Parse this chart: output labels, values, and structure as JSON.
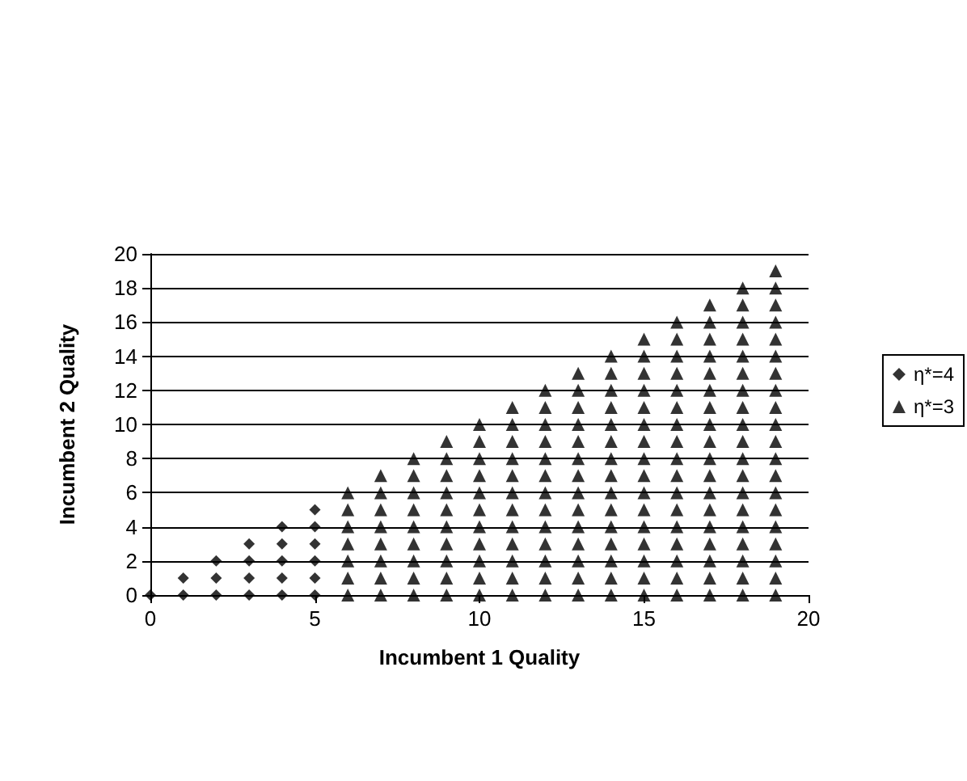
{
  "chart_data": {
    "type": "scatter",
    "xlabel": "Incumbent 1 Quality",
    "ylabel": "Incumbent 2 Quality",
    "xlim": [
      0,
      20
    ],
    "xticks": [
      0,
      5,
      10,
      15,
      20
    ],
    "ylim": [
      0,
      20
    ],
    "yticks": [
      0,
      2,
      4,
      6,
      8,
      10,
      12,
      14,
      16,
      18,
      20
    ],
    "grid": "y",
    "legend": "right",
    "series": [
      {
        "name": "η*=4",
        "color": "#000000",
        "marker": "diamond",
        "x": [
          0,
          1,
          1,
          2,
          2,
          2,
          3,
          3,
          3,
          3,
          4,
          4,
          4,
          4,
          4,
          5,
          5,
          5,
          5,
          5,
          5
        ],
        "values": [
          0,
          0,
          1,
          0,
          1,
          2,
          0,
          1,
          2,
          3,
          0,
          1,
          2,
          3,
          4,
          0,
          1,
          2,
          3,
          4,
          5
        ]
      },
      {
        "name": "η*=3",
        "color": "#000000",
        "marker": "triangle",
        "x": [
          6,
          6,
          6,
          6,
          6,
          6,
          6,
          7,
          7,
          7,
          7,
          7,
          7,
          7,
          7,
          8,
          8,
          8,
          8,
          8,
          8,
          8,
          8,
          8,
          9,
          9,
          9,
          9,
          9,
          9,
          9,
          9,
          9,
          9,
          10,
          10,
          10,
          10,
          10,
          10,
          10,
          10,
          10,
          10,
          10,
          11,
          11,
          11,
          11,
          11,
          11,
          11,
          11,
          11,
          11,
          11,
          11,
          12,
          12,
          12,
          12,
          12,
          12,
          12,
          12,
          12,
          12,
          12,
          12,
          12,
          13,
          13,
          13,
          13,
          13,
          13,
          13,
          13,
          13,
          13,
          13,
          13,
          13,
          13,
          14,
          14,
          14,
          14,
          14,
          14,
          14,
          14,
          14,
          14,
          14,
          14,
          14,
          14,
          14,
          15,
          15,
          15,
          15,
          15,
          15,
          15,
          15,
          15,
          15,
          15,
          15,
          15,
          15,
          15,
          15,
          16,
          16,
          16,
          16,
          16,
          16,
          16,
          16,
          16,
          16,
          16,
          16,
          16,
          16,
          16,
          16,
          16,
          17,
          17,
          17,
          17,
          17,
          17,
          17,
          17,
          17,
          17,
          17,
          17,
          17,
          17,
          17,
          17,
          17,
          17,
          18,
          18,
          18,
          18,
          18,
          18,
          18,
          18,
          18,
          18,
          18,
          18,
          18,
          18,
          18,
          18,
          18,
          18,
          18,
          19,
          19,
          19,
          19,
          19,
          19,
          19,
          19,
          19,
          19,
          19,
          19,
          19,
          19,
          19,
          19,
          19,
          19,
          19,
          19
        ],
        "values": [
          0,
          1,
          2,
          3,
          4,
          5,
          6,
          0,
          1,
          2,
          3,
          4,
          5,
          6,
          7,
          0,
          1,
          2,
          3,
          4,
          5,
          6,
          7,
          8,
          0,
          1,
          2,
          3,
          4,
          5,
          6,
          7,
          8,
          9,
          0,
          1,
          2,
          3,
          4,
          5,
          6,
          7,
          8,
          9,
          10,
          0,
          1,
          2,
          3,
          4,
          5,
          6,
          7,
          8,
          9,
          10,
          11,
          0,
          1,
          2,
          3,
          4,
          5,
          6,
          7,
          8,
          9,
          10,
          11,
          12,
          0,
          1,
          2,
          3,
          4,
          5,
          6,
          7,
          8,
          9,
          10,
          11,
          12,
          13,
          0,
          1,
          2,
          3,
          4,
          5,
          6,
          7,
          8,
          9,
          10,
          11,
          12,
          13,
          14,
          0,
          1,
          2,
          3,
          4,
          5,
          6,
          7,
          8,
          9,
          10,
          11,
          12,
          13,
          14,
          15,
          0,
          1,
          2,
          3,
          4,
          5,
          6,
          7,
          8,
          9,
          10,
          11,
          12,
          13,
          14,
          15,
          16,
          0,
          1,
          2,
          3,
          4,
          5,
          6,
          7,
          8,
          9,
          10,
          11,
          12,
          13,
          14,
          15,
          16,
          17,
          0,
          1,
          2,
          3,
          4,
          5,
          6,
          7,
          8,
          9,
          10,
          11,
          12,
          13,
          14,
          15,
          16,
          17,
          18,
          0,
          1,
          2,
          3,
          4,
          5,
          6,
          7,
          8,
          9,
          10,
          11,
          12,
          13,
          14,
          15,
          16,
          17,
          18,
          19
        ]
      }
    ]
  }
}
